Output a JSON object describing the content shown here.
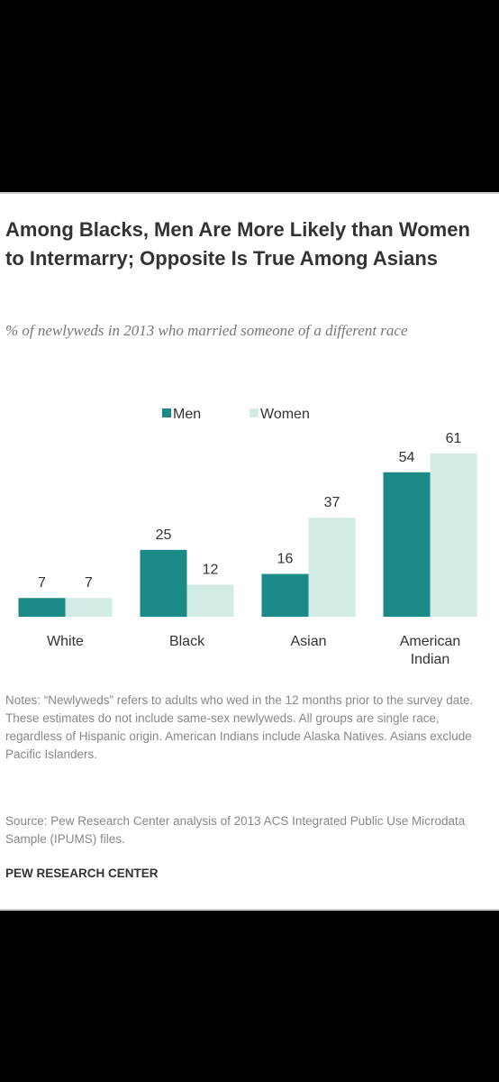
{
  "chart_data": {
    "type": "bar",
    "title": "Among Blacks, Men Are More Likely than Women to Intermarry; Opposite Is True Among Asians",
    "subtitle": "% of newlyweds in 2013 who married someone of a different race",
    "categories": [
      "White",
      "Black",
      "Asian",
      "American Indian"
    ],
    "series": [
      {
        "name": "Men",
        "color": "#1b8a86",
        "values": [
          7,
          25,
          16,
          54
        ]
      },
      {
        "name": "Women",
        "color": "#d2ebe5",
        "values": [
          7,
          12,
          37,
          61
        ]
      }
    ],
    "notes": "Notes: “Newlyweds” refers to adults who wed in the 12 months prior to the survey date. These estimates do not include same-sex newlyweds. All groups are single race, regardless of Hispanic origin. American Indians include Alaska Natives. Asians exclude Pacific Islanders.",
    "source": "Source: Pew Research Center analysis of 2013 ACS Integrated Public Use Microdata Sample (IPUMS) files.",
    "credit": "PEW RESEARCH CENTER"
  }
}
